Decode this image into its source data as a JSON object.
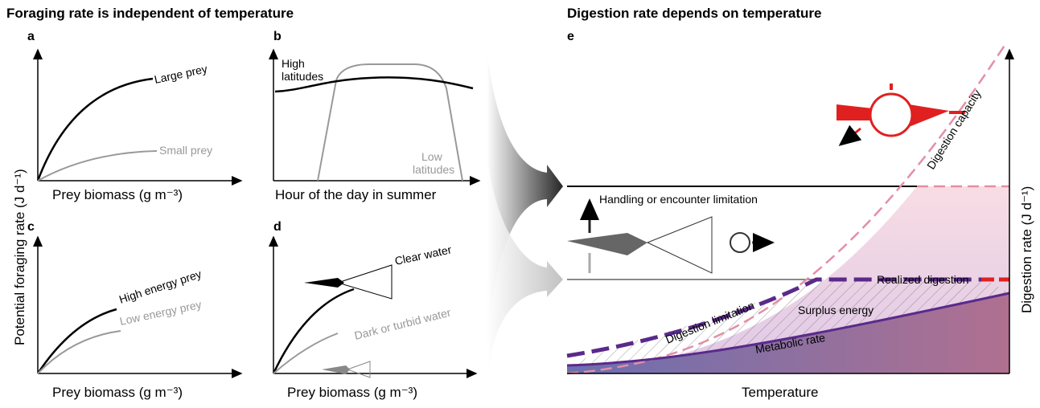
{
  "left_heading": "Foraging rate is independent of temperature",
  "right_heading": "Digestion rate depends on temperature",
  "panels": {
    "a": {
      "letter": "a",
      "large": "Large prey",
      "small": "Small prey",
      "xlabel": "Prey biomass (g m⁻³)"
    },
    "b": {
      "letter": "b",
      "high": [
        "High",
        "latitudes"
      ],
      "low": [
        "Low",
        "latitudes"
      ],
      "xlabel": "Hour of the day in summer"
    },
    "c": {
      "letter": "c",
      "high": "High energy prey",
      "low": "Low energy prey",
      "xlabel": "Prey biomass (g m⁻³)"
    },
    "d": {
      "letter": "d",
      "clear": "Clear water",
      "dark": "Dark or turbid water",
      "xlabel": "Prey biomass (g m⁻³)"
    },
    "e": {
      "letter": "e",
      "handling": "Handling or encounter limitation",
      "capacity": "Digestion capacity",
      "realized": "Realized digestion",
      "surplus": "Surplus energy",
      "limitation": "Digestion limitation",
      "metabolic": "Metabolic rate",
      "xlabel": "Temperature",
      "ylabel": "Digestion rate (J d⁻¹)"
    }
  },
  "shared_ylabel": "Potential foraging rate (J d⁻¹)"
}
